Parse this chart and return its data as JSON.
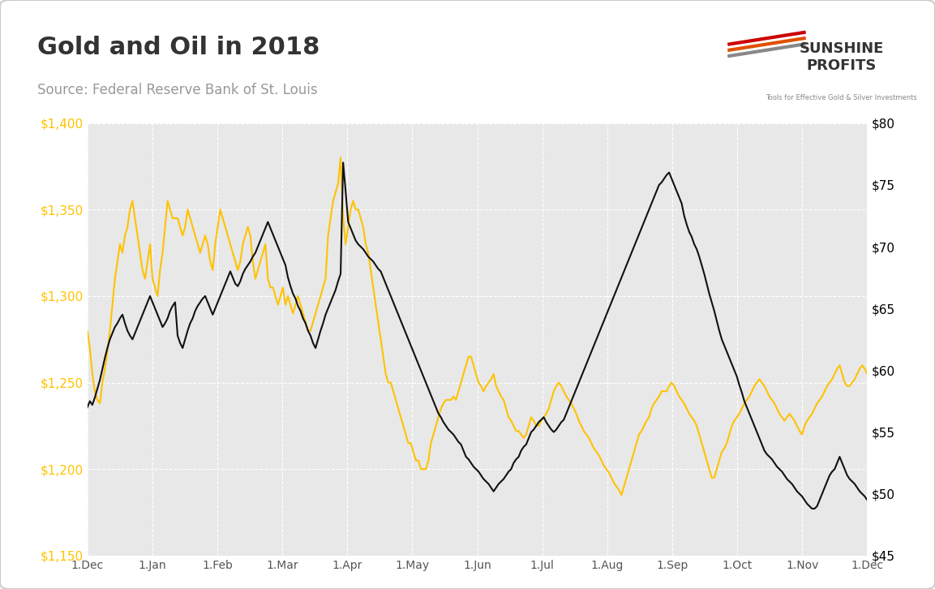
{
  "title": "Gold and Oil in 2018",
  "subtitle": "Source: Federal Reserve Bank of St. Louis",
  "title_color": "#333333",
  "subtitle_color": "#999999",
  "background_color": "#ffffff",
  "plot_bg_color": "#e8e8e8",
  "gold_color": "#FFC200",
  "oil_color": "#111111",
  "gold_ylim": [
    1150,
    1400
  ],
  "oil_ylim": [
    45,
    80
  ],
  "gold_yticks": [
    1150,
    1200,
    1250,
    1300,
    1350,
    1400
  ],
  "oil_yticks": [
    45,
    50,
    55,
    60,
    65,
    70,
    75,
    80
  ],
  "xtick_labels": [
    "1.Dec",
    "1.Jan",
    "1.Feb",
    "1.Mar",
    "1.Apr",
    "1.May",
    "1.Jun",
    "1.Jul",
    "1.Aug",
    "1.Sep",
    "1.Oct",
    "1.Nov",
    "1.Dec"
  ],
  "grid_color": "#ffffff",
  "grid_style": "--",
  "line_width": 1.5,
  "gold_data": [
    1280,
    1270,
    1255,
    1245,
    1240,
    1238,
    1250,
    1258,
    1268,
    1280,
    1295,
    1310,
    1320,
    1330,
    1325,
    1335,
    1340,
    1350,
    1355,
    1345,
    1335,
    1325,
    1315,
    1310,
    1320,
    1330,
    1310,
    1305,
    1300,
    1315,
    1325,
    1340,
    1355,
    1350,
    1345,
    1345,
    1345,
    1340,
    1335,
    1340,
    1350,
    1345,
    1340,
    1335,
    1330,
    1325,
    1330,
    1335,
    1330,
    1320,
    1315,
    1330,
    1340,
    1350,
    1345,
    1340,
    1335,
    1330,
    1325,
    1320,
    1315,
    1320,
    1330,
    1335,
    1340,
    1335,
    1320,
    1310,
    1315,
    1320,
    1325,
    1330,
    1310,
    1305,
    1305,
    1300,
    1295,
    1300,
    1305,
    1295,
    1300,
    1295,
    1290,
    1295,
    1300,
    1295,
    1290,
    1285,
    1280,
    1280,
    1285,
    1290,
    1295,
    1300,
    1305,
    1310,
    1335,
    1345,
    1355,
    1360,
    1365,
    1380,
    1345,
    1330,
    1340,
    1350,
    1355,
    1350,
    1350,
    1345,
    1340,
    1330,
    1325,
    1315,
    1305,
    1295,
    1285,
    1275,
    1265,
    1255,
    1250,
    1250,
    1245,
    1240,
    1235,
    1230,
    1225,
    1220,
    1215,
    1215,
    1210,
    1205,
    1205,
    1200,
    1200,
    1200,
    1205,
    1215,
    1220,
    1225,
    1230,
    1235,
    1238,
    1240,
    1240,
    1240,
    1242,
    1240,
    1245,
    1250,
    1255,
    1260,
    1265,
    1265,
    1260,
    1255,
    1250,
    1248,
    1245,
    1248,
    1250,
    1252,
    1255,
    1248,
    1245,
    1242,
    1240,
    1235,
    1230,
    1228,
    1225,
    1222,
    1222,
    1220,
    1218,
    1220,
    1225,
    1230,
    1228,
    1225,
    1225,
    1228,
    1230,
    1232,
    1235,
    1240,
    1245,
    1248,
    1250,
    1248,
    1245,
    1242,
    1240,
    1238,
    1235,
    1232,
    1228,
    1225,
    1222,
    1220,
    1218,
    1215,
    1212,
    1210,
    1208,
    1205,
    1202,
    1200,
    1198,
    1195,
    1192,
    1190,
    1188,
    1185,
    1190,
    1195,
    1200,
    1205,
    1210,
    1215,
    1220,
    1222,
    1225,
    1228,
    1230,
    1235,
    1238,
    1240,
    1242,
    1245,
    1245,
    1245,
    1248,
    1250,
    1248,
    1245,
    1242,
    1240,
    1238,
    1235,
    1232,
    1230,
    1228,
    1225,
    1220,
    1215,
    1210,
    1205,
    1200,
    1195,
    1195,
    1200,
    1205,
    1210,
    1212,
    1215,
    1220,
    1225,
    1228,
    1230,
    1232,
    1235,
    1238,
    1240,
    1242,
    1245,
    1248,
    1250,
    1252,
    1250,
    1248,
    1245,
    1242,
    1240,
    1238,
    1235,
    1232,
    1230,
    1228,
    1230,
    1232,
    1230,
    1228,
    1225,
    1222,
    1220,
    1225,
    1228,
    1230,
    1232,
    1235,
    1238,
    1240,
    1242,
    1245,
    1248,
    1250,
    1252,
    1255,
    1258,
    1260,
    1255,
    1250,
    1248,
    1248,
    1250,
    1252,
    1255,
    1258,
    1260,
    1258,
    1255
  ],
  "oil_data": [
    57,
    57.5,
    57.2,
    57.8,
    58.5,
    59.2,
    60.1,
    61.0,
    61.8,
    62.5,
    63.0,
    63.5,
    63.8,
    64.2,
    64.5,
    63.8,
    63.2,
    62.8,
    62.5,
    63.0,
    63.5,
    64.0,
    64.5,
    65.0,
    65.5,
    66.0,
    65.5,
    65.0,
    64.5,
    64.0,
    63.5,
    63.8,
    64.2,
    64.8,
    65.2,
    65.5,
    62.8,
    62.2,
    61.8,
    62.5,
    63.2,
    63.8,
    64.2,
    64.8,
    65.2,
    65.5,
    65.8,
    66.0,
    65.5,
    65.0,
    64.5,
    65.0,
    65.5,
    66.0,
    66.5,
    67.0,
    67.5,
    68.0,
    67.5,
    67.0,
    66.8,
    67.2,
    67.8,
    68.2,
    68.5,
    68.8,
    69.2,
    69.5,
    70.0,
    70.5,
    71.0,
    71.5,
    72.0,
    71.5,
    71.0,
    70.5,
    70.0,
    69.5,
    69.0,
    68.5,
    67.5,
    66.8,
    66.2,
    65.8,
    65.2,
    64.8,
    64.2,
    63.8,
    63.2,
    62.8,
    62.2,
    61.8,
    62.5,
    63.2,
    63.8,
    64.5,
    65.0,
    65.5,
    66.0,
    66.5,
    67.2,
    67.8,
    76.8,
    74.5,
    72.0,
    71.5,
    71.0,
    70.5,
    70.2,
    70.0,
    69.8,
    69.5,
    69.2,
    69.0,
    68.8,
    68.5,
    68.2,
    68.0,
    67.5,
    67.0,
    66.5,
    66.0,
    65.5,
    65.0,
    64.5,
    64.0,
    63.5,
    63.0,
    62.5,
    62.0,
    61.5,
    61.0,
    60.5,
    60.0,
    59.5,
    59.0,
    58.5,
    58.0,
    57.5,
    57.0,
    56.5,
    56.2,
    55.8,
    55.5,
    55.2,
    55.0,
    54.8,
    54.5,
    54.2,
    54.0,
    53.5,
    53.0,
    52.8,
    52.5,
    52.2,
    52.0,
    51.8,
    51.5,
    51.2,
    51.0,
    50.8,
    50.5,
    50.2,
    50.5,
    50.8,
    51.0,
    51.2,
    51.5,
    51.8,
    52.0,
    52.5,
    52.8,
    53.0,
    53.5,
    53.8,
    54.0,
    54.5,
    55.0,
    55.2,
    55.5,
    55.8,
    56.0,
    56.2,
    55.8,
    55.5,
    55.2,
    55.0,
    55.2,
    55.5,
    55.8,
    56.0,
    56.5,
    57.0,
    57.5,
    58.0,
    58.5,
    59.0,
    59.5,
    60.0,
    60.5,
    61.0,
    61.5,
    62.0,
    62.5,
    63.0,
    63.5,
    64.0,
    64.5,
    65.0,
    65.5,
    66.0,
    66.5,
    67.0,
    67.5,
    68.0,
    68.5,
    69.0,
    69.5,
    70.0,
    70.5,
    71.0,
    71.5,
    72.0,
    72.5,
    73.0,
    73.5,
    74.0,
    74.5,
    75.0,
    75.2,
    75.5,
    75.8,
    76.0,
    75.5,
    75.0,
    74.5,
    74.0,
    73.5,
    72.5,
    71.8,
    71.2,
    70.8,
    70.2,
    69.8,
    69.2,
    68.5,
    67.8,
    67.0,
    66.2,
    65.5,
    64.8,
    64.0,
    63.2,
    62.5,
    62.0,
    61.5,
    61.0,
    60.5,
    60.0,
    59.5,
    58.8,
    58.2,
    57.5,
    57.0,
    56.5,
    56.0,
    55.5,
    55.0,
    54.5,
    54.0,
    53.5,
    53.2,
    53.0,
    52.8,
    52.5,
    52.2,
    52.0,
    51.8,
    51.5,
    51.2,
    51.0,
    50.8,
    50.5,
    50.2,
    50.0,
    49.8,
    49.5,
    49.2,
    49.0,
    48.8,
    48.8,
    49.0,
    49.5,
    50.0,
    50.5,
    51.0,
    51.5,
    51.8,
    52.0,
    52.5,
    53.0,
    52.5,
    52.0,
    51.5,
    51.2,
    51.0,
    50.8,
    50.5,
    50.2,
    50.0,
    49.8,
    49.5
  ]
}
